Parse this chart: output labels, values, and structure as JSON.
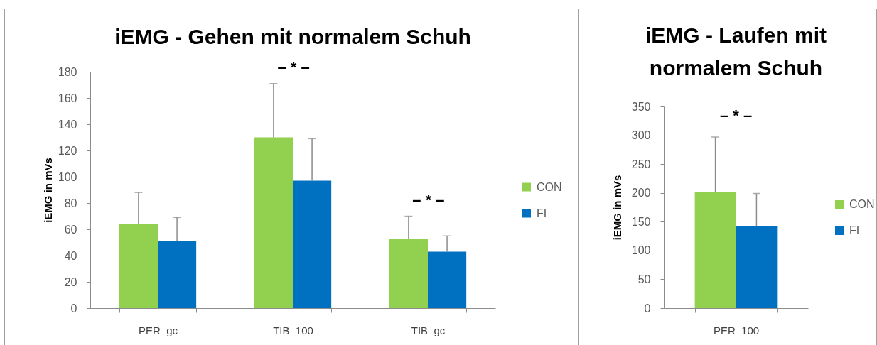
{
  "chart_data": [
    {
      "type": "bar",
      "title": "iEMG - Gehen mit normalem Schuh",
      "ylabel": "iEMG in mVs",
      "categories": [
        "PER_gc",
        "TIB_100",
        "TIB_gc"
      ],
      "series": [
        {
          "name": "CON",
          "color": "#92d050",
          "values": [
            64,
            130,
            53
          ],
          "errors": [
            [
              64,
              88
            ],
            [
              130,
              171
            ],
            [
              53,
              70
            ]
          ]
        },
        {
          "name": "FI",
          "color": "#0070c0",
          "values": [
            51,
            97,
            43
          ],
          "errors": [
            [
              51,
              69
            ],
            [
              97,
              129
            ],
            [
              43,
              55
            ]
          ]
        }
      ],
      "ylim": [
        0,
        180
      ],
      "yticks": [
        0,
        20,
        40,
        60,
        80,
        100,
        120,
        140,
        160,
        180
      ],
      "grid": false,
      "legend": "right",
      "annotations": [
        "– * –",
        "– * –"
      ]
    },
    {
      "type": "bar",
      "title": "iEMG - Laufen mit normalem Schuh",
      "ylabel": "iEMG in mVs",
      "categories": [
        "PER_100"
      ],
      "series": [
        {
          "name": "CON",
          "color": "#92d050",
          "values": [
            202
          ],
          "errors": [
            [
              202,
              297
            ]
          ]
        },
        {
          "name": "FI",
          "color": "#0070c0",
          "values": [
            142
          ],
          "errors": [
            [
              142,
              199
            ]
          ]
        }
      ],
      "ylim": [
        0,
        350
      ],
      "yticks": [
        0,
        50,
        100,
        150,
        200,
        250,
        300,
        350
      ],
      "grid": false,
      "legend": "right",
      "annotations": [
        "– * –"
      ]
    }
  ]
}
